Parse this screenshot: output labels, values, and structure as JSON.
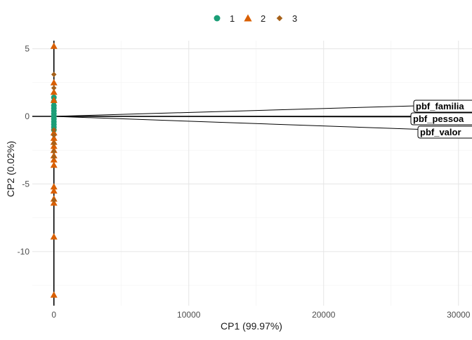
{
  "chart_data": {
    "type": "scatter",
    "xlabel": "CP1 (99.97%)",
    "ylabel": "CP2 (0.02%)",
    "xlim": [
      -1600,
      31000
    ],
    "ylim": [
      -14.0,
      5.6
    ],
    "x_ticks": [
      0,
      10000,
      20000,
      30000
    ],
    "x_tick_labels": [
      "0",
      "10000",
      "20000",
      "30000"
    ],
    "y_ticks": [
      5,
      0,
      -5,
      -10
    ],
    "y_tick_labels": [
      "5",
      "0",
      "-5",
      "-10"
    ],
    "x_minor_ticks": [
      5000,
      15000,
      25000
    ],
    "y_minor_ticks": [
      2.5,
      -2.5,
      -7.5,
      -12.5
    ],
    "grid": true,
    "legend_position": "top",
    "series": [
      {
        "name": "1",
        "shape": "circle",
        "color": "#1b9e77",
        "points": [
          {
            "x": 0,
            "y": 1.4
          },
          {
            "x": 0,
            "y": 1.1
          },
          {
            "x": 0,
            "y": 0.8
          },
          {
            "x": 0,
            "y": 0.6
          },
          {
            "x": 0,
            "y": 0.4
          },
          {
            "x": 0,
            "y": 0.2
          },
          {
            "x": 0,
            "y": 0.0
          },
          {
            "x": 0,
            "y": -0.2
          },
          {
            "x": 0,
            "y": -0.4
          },
          {
            "x": 0,
            "y": -0.6
          },
          {
            "x": 0,
            "y": -0.8
          },
          {
            "x": 0,
            "y": -1.0
          }
        ]
      },
      {
        "name": "2",
        "shape": "triangle",
        "color": "#d95f02",
        "points": [
          {
            "x": 0,
            "y": 5.2
          },
          {
            "x": 0,
            "y": 2.5
          },
          {
            "x": 0,
            "y": 1.8
          },
          {
            "x": 0,
            "y": 1.2
          },
          {
            "x": 0,
            "y": -1.2
          },
          {
            "x": 0,
            "y": -1.6
          },
          {
            "x": 0,
            "y": -1.9
          },
          {
            "x": 0,
            "y": -2.2
          },
          {
            "x": 0,
            "y": -2.5
          },
          {
            "x": 0,
            "y": -2.9
          },
          {
            "x": 0,
            "y": -3.2
          },
          {
            "x": 0,
            "y": -3.6
          },
          {
            "x": 0,
            "y": -5.2
          },
          {
            "x": 0,
            "y": -5.5
          },
          {
            "x": 0,
            "y": -6.1
          },
          {
            "x": 0,
            "y": -6.4
          },
          {
            "x": 0,
            "y": -8.9
          },
          {
            "x": 0,
            "y": -13.2
          }
        ]
      },
      {
        "name": "3",
        "shape": "diamond",
        "color": "#a6611a",
        "points": [
          {
            "x": 0,
            "y": 3.1
          },
          {
            "x": 0,
            "y": 2.1
          },
          {
            "x": 0,
            "y": -1.0
          },
          {
            "x": 0,
            "y": -1.4
          },
          {
            "x": 0,
            "y": -2.0
          },
          {
            "x": 0,
            "y": -2.6
          },
          {
            "x": 0,
            "y": -3.0
          },
          {
            "x": 0,
            "y": -6.2
          }
        ]
      }
    ],
    "loadings": [
      {
        "label": "pbf_familia",
        "x": 31000,
        "y": 0.9
      },
      {
        "label": "pbf_pessoa",
        "x": 31000,
        "y": -0.05
      },
      {
        "label": "pbf_valor",
        "x": 31000,
        "y": -1.1
      }
    ]
  }
}
